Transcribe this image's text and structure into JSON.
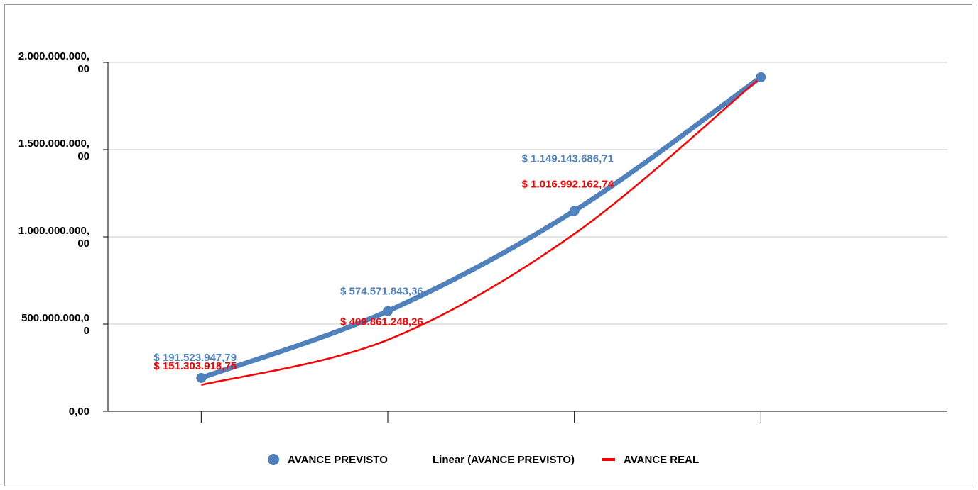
{
  "chart_data": {
    "type": "line",
    "title": "",
    "xlabel": "",
    "ylabel": "",
    "ylim": [
      0,
      2000000000
    ],
    "y_ticks": [
      0,
      500000000,
      1000000000,
      1500000000,
      2000000000
    ],
    "y_tick_labels": [
      [
        "0,00"
      ],
      [
        "500.000.000,0",
        "0"
      ],
      [
        "1.000.000.000,",
        "00"
      ],
      [
        "1.500.000.000,",
        "00"
      ],
      [
        "2.000.000.000,",
        "00"
      ]
    ],
    "categories": [
      "",
      "",
      "",
      ""
    ],
    "grid": true,
    "legend_position": "bottom",
    "series": [
      {
        "name": "AVANCE PREVISTO",
        "color": "#4f81bd",
        "marker": "circle",
        "values": [
          191523947.79,
          574571843.36,
          1149143686.71,
          1915239477.85
        ],
        "data_labels": [
          "$ 191.523.947,79",
          "$ 574.571.843,36",
          "$ 1.149.143.686,71",
          null
        ]
      },
      {
        "name": "AVANCE REAL",
        "color": "#ff0000",
        "marker": "none",
        "values": [
          151303918.75,
          409861248.26,
          1016992162.74,
          1915239477.85
        ],
        "data_labels": [
          "$ 151.303.918,75",
          "$ 409.861.248,26",
          "$ 1.016.992.162,74",
          null
        ]
      }
    ],
    "trendline": {
      "name": "Linear (AVANCE PREVISTO)",
      "type": "linear",
      "of": "AVANCE PREVISTO"
    }
  },
  "legend": {
    "items": [
      {
        "label": "AVANCE PREVISTO",
        "symbol": "circle",
        "color": "#4f81bd"
      },
      {
        "label": "Linear (AVANCE PREVISTO)",
        "symbol": "none",
        "color": ""
      },
      {
        "label": "AVANCE REAL",
        "symbol": "line",
        "color": "#ff0000"
      }
    ]
  }
}
